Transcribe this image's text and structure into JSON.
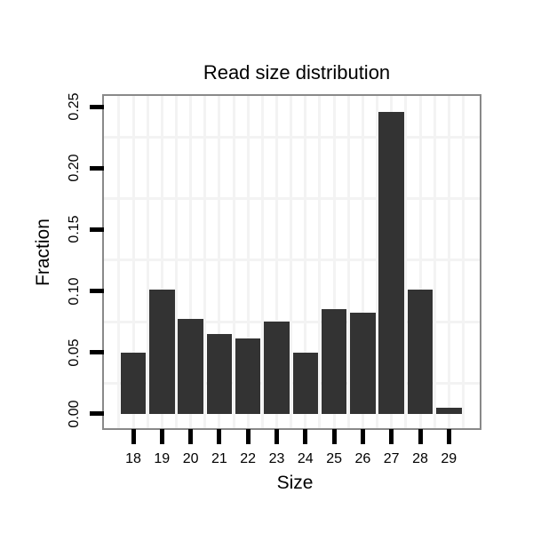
{
  "chart_data": {
    "type": "bar",
    "title": "Read size distribution",
    "xlabel": "Size",
    "ylabel": "Fraction",
    "categories": [
      "18",
      "19",
      "20",
      "21",
      "22",
      "23",
      "24",
      "25",
      "26",
      "27",
      "28",
      "29"
    ],
    "values": [
      0.05,
      0.101,
      0.077,
      0.065,
      0.061,
      0.075,
      0.05,
      0.085,
      0.082,
      0.246,
      0.101,
      0.005
    ],
    "ytick_values": [
      0.0,
      0.05,
      0.1,
      0.15,
      0.2,
      0.25
    ],
    "ytick_labels": [
      "0.00",
      "0.05",
      "0.10",
      "0.15",
      "0.20",
      "0.25"
    ],
    "ylim": [
      -0.011,
      0.259
    ],
    "legend": "none",
    "grid": true,
    "colors": {
      "bar": "#333333",
      "panel_border": "#898989",
      "gridline": "#f3f3f3",
      "tick": "#000000",
      "text": "#000000",
      "background": "#ffffff"
    }
  }
}
